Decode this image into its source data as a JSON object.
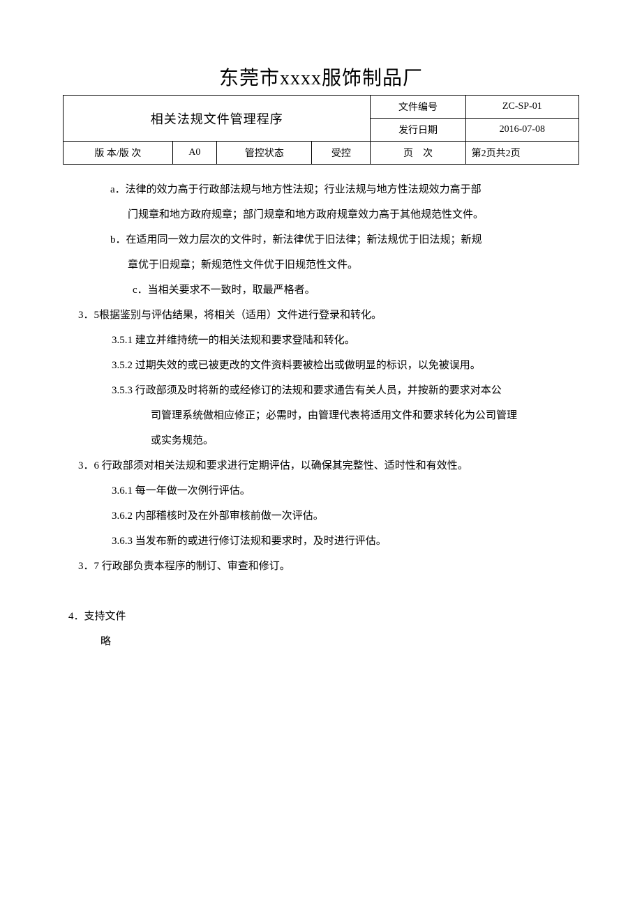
{
  "header": {
    "company_title": "东莞市xxxx服饰制品厂",
    "doc_name": "相关法规文件管理程序",
    "meta": {
      "doc_no_label": "文件编号",
      "doc_no_value": "ZC-SP-01",
      "issue_date_label": "发行日期",
      "issue_date_value": "2016-07-08",
      "version_label": "版 本/版 次",
      "version_value": "A0",
      "control_status_label": "管控状态",
      "control_status_value": "受控",
      "page_label": "页　次",
      "page_value": "第2页共2页"
    }
  },
  "body": {
    "a": "a．法律的效力高于行政部法规与地方性法规；行业法规与地方性法规效力高于部",
    "a_cont": "门规章和地方政府规章；部门规章和地方政府规章效力高于其他规范性文件。",
    "b": "b．在适用同一效力层次的文件时，新法律优于旧法律；新法规优于旧法规；新规",
    "b_cont": "章优于旧规章；新规范性文件优于旧规范性文件。",
    "c": "c．当相关要求不一致时，取最严格者。",
    "s35": "3．5根据鉴别与评估结果，将相关（适用）文件进行登录和转化。",
    "s351": "3.5.1 建立并维持统一的相关法规和要求登陆和转化。",
    "s352": "3.5.2 过期失效的或已被更改的文件资料要被检出或做明显的标识，以免被误用。",
    "s353": "3.5.3 行政部须及时将新的或经修订的法规和要求通告有关人员，并按新的要求对本公",
    "s353_cont1": "司管理系统做相应修正；必需时，由管理代表将适用文件和要求转化为公司管理",
    "s353_cont2": "或实务规范。",
    "s36": "3．6 行政部须对相关法规和要求进行定期评估，以确保其完整性、适时性和有效性。",
    "s361": "3.6.1 每一年做一次例行评估。",
    "s362": "3.6.2 内部稽核时及在外部审核前做一次评估。",
    "s363": "3.6.3 当发布新的或进行修订法规和要求时，及时进行评估。",
    "s37": "3．7 行政部负责本程序的制订、审查和修订。",
    "s4": "4．支持文件",
    "s4_body": "略"
  },
  "colors": {
    "text": "#000000",
    "border": "#000000",
    "background": "#ffffff"
  }
}
